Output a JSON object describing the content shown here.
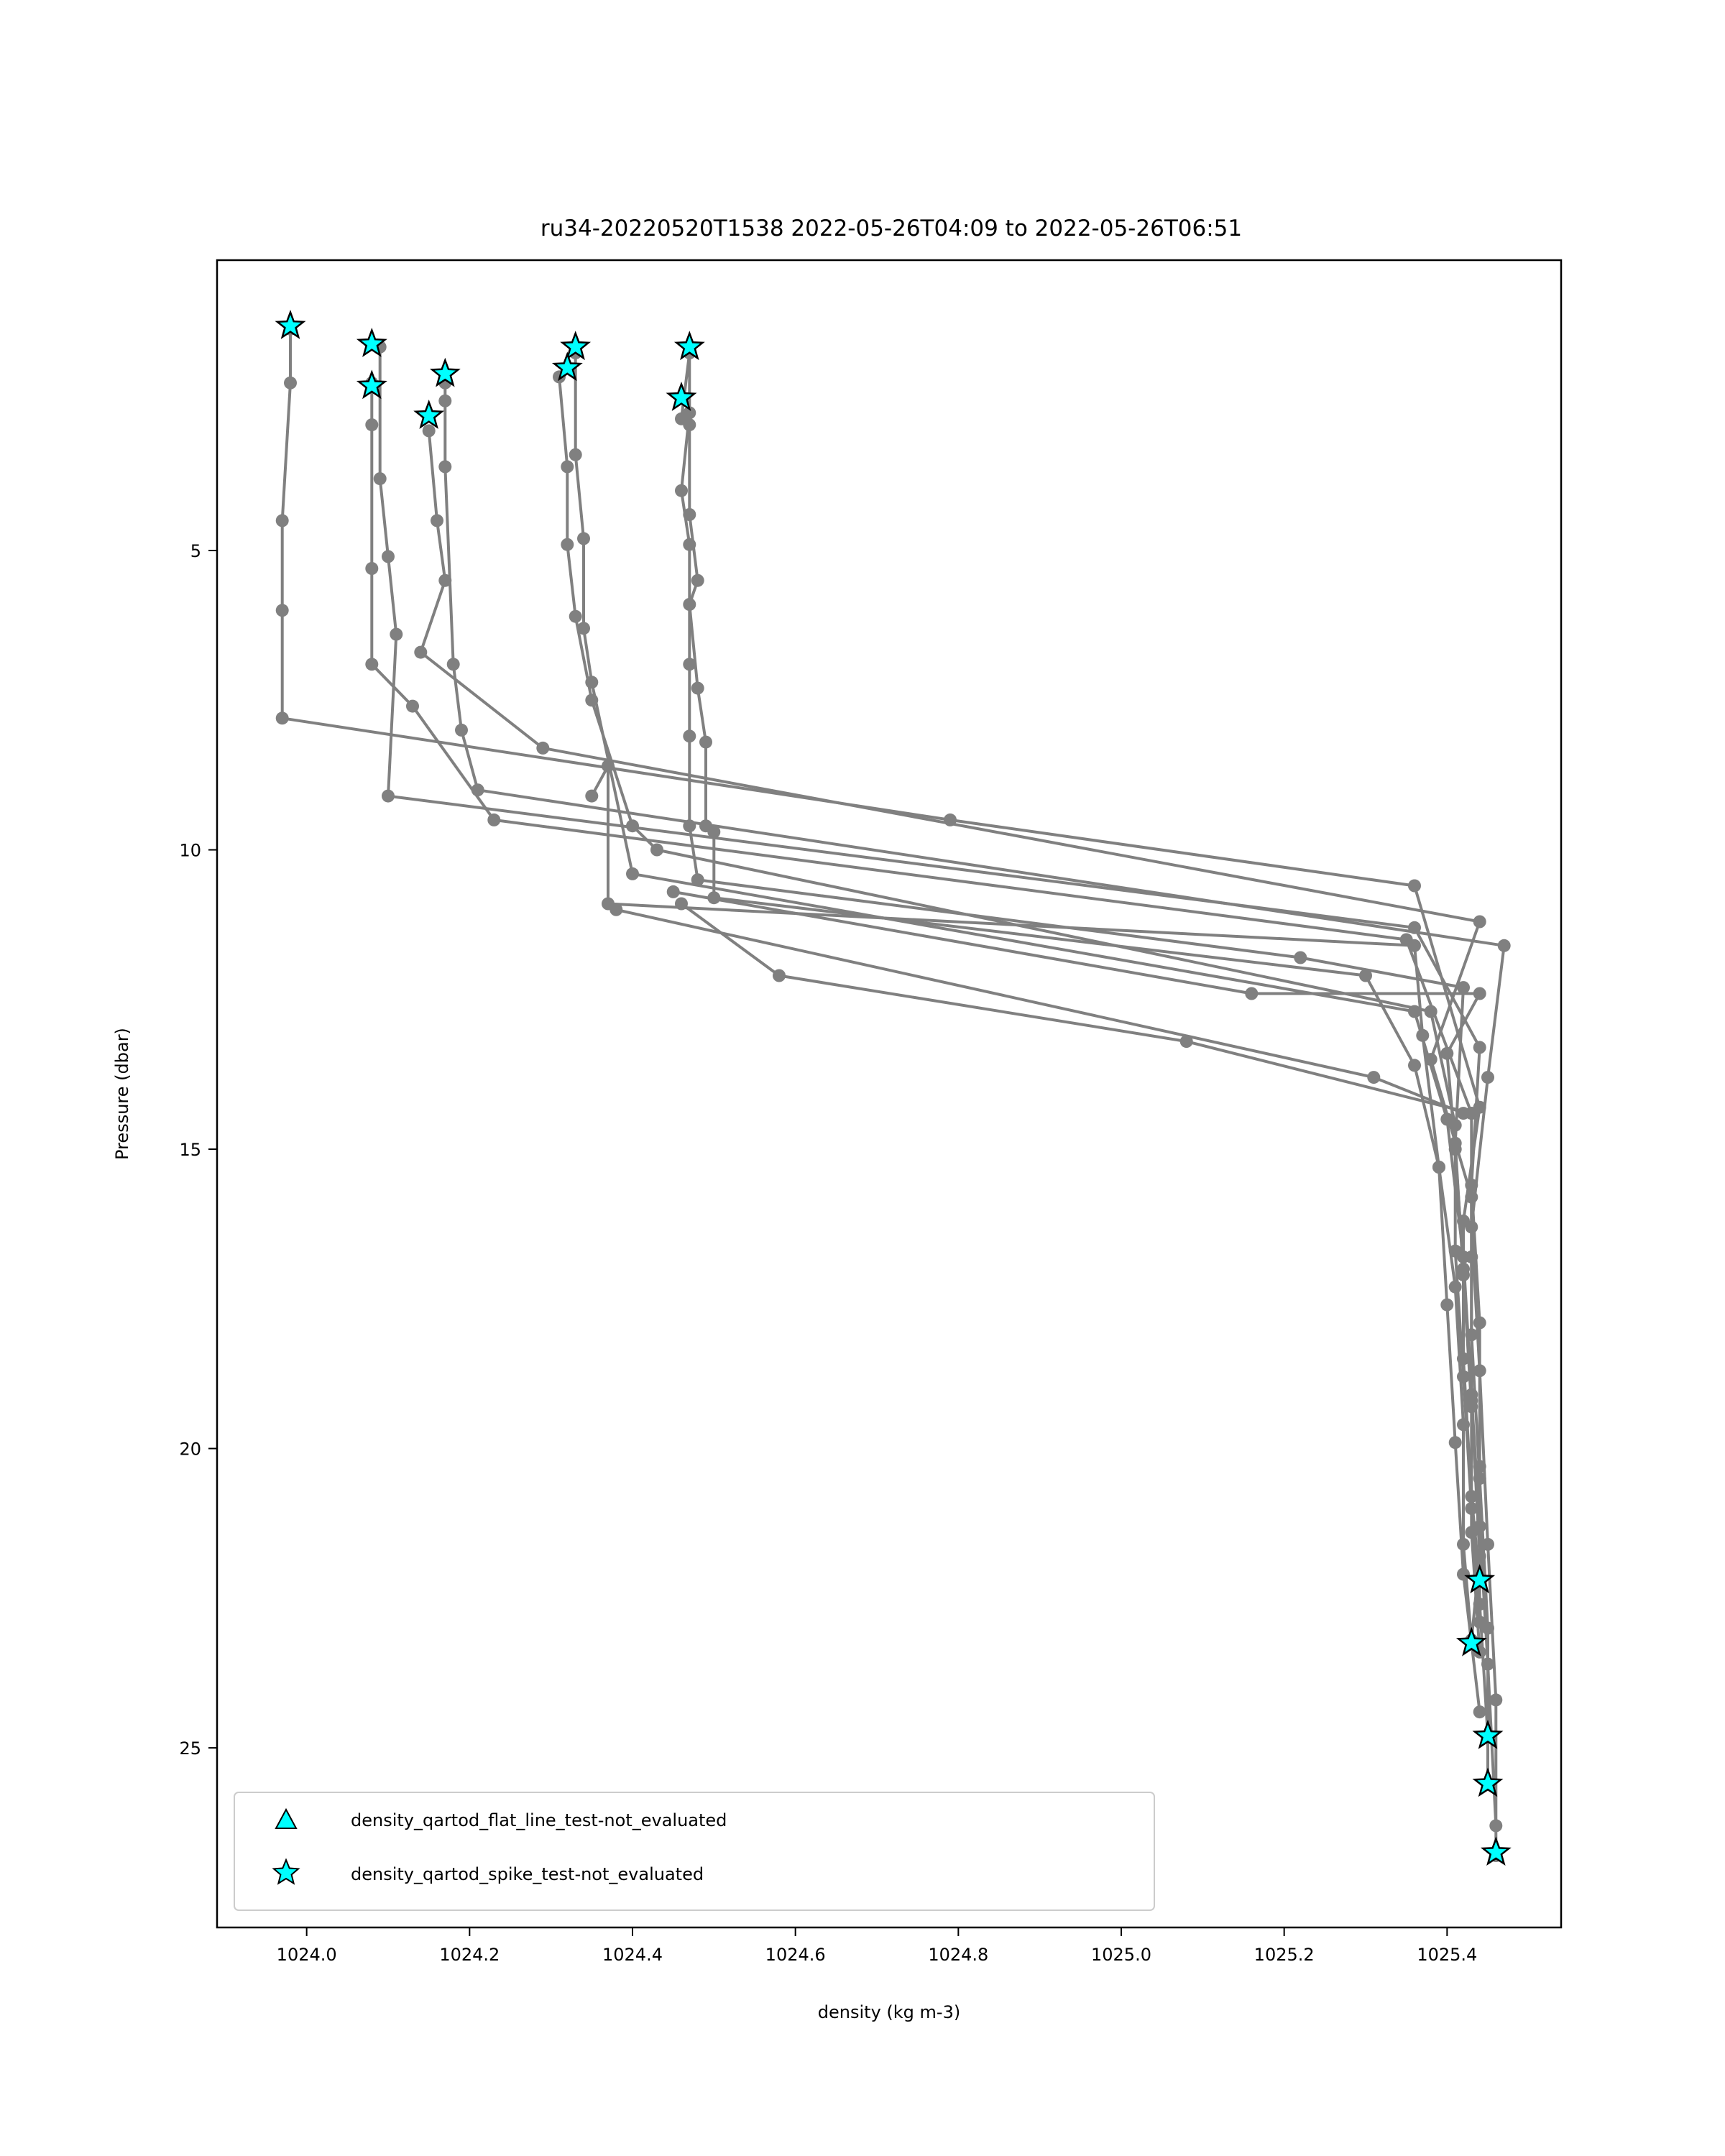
{
  "chart_data": {
    "type": "scatter",
    "title": "ru34-20220520T1538 2022-05-26T04:09 to 2022-05-26T06:51",
    "xlabel": "density (kg m-3)",
    "ylabel": "Pressure (dbar)",
    "xlim": [
      1023.89,
      1025.54
    ],
    "ylim": [
      28.0,
      0.15
    ],
    "y_inverted": true,
    "xticks": [
      1024.0,
      1024.2,
      1024.4,
      1024.6,
      1024.8,
      1025.0,
      1025.2,
      1025.4
    ],
    "xtick_labels": [
      "1024.0",
      "1024.2",
      "1024.4",
      "1024.6",
      "1024.8",
      "1025.0",
      "1025.2",
      "1025.4"
    ],
    "yticks": [
      5,
      10,
      15,
      20,
      25
    ],
    "ytick_labels": [
      "5",
      "10",
      "15",
      "20",
      "25"
    ],
    "grid": false,
    "legend_position": "lower-left",
    "line_color": "#808080",
    "marker_fill": "#00ffff",
    "marker_edge": "#000000",
    "profile_series": [
      {
        "points": [
          [
            1023.98,
            1.3
          ],
          [
            1023.98,
            2.2
          ],
          [
            1023.97,
            4.5
          ],
          [
            1023.97,
            6.0
          ],
          [
            1023.97,
            7.8
          ],
          [
            1024.79,
            9.5
          ],
          [
            1025.36,
            10.6
          ],
          [
            1025.44,
            14.3
          ],
          [
            1025.42,
            16.2
          ],
          [
            1025.42,
            18.5
          ],
          [
            1025.43,
            20.8
          ],
          [
            1025.44,
            22.2
          ]
        ]
      },
      {
        "points": [
          [
            1024.08,
            2.2
          ],
          [
            1024.08,
            2.9
          ],
          [
            1024.08,
            5.3
          ],
          [
            1024.08,
            6.9
          ],
          [
            1024.13,
            7.6
          ],
          [
            1024.23,
            9.5
          ],
          [
            1025.35,
            11.5
          ],
          [
            1025.43,
            14.4
          ],
          [
            1025.43,
            16.8
          ],
          [
            1025.43,
            19.2
          ],
          [
            1025.44,
            21.8
          ],
          [
            1025.43,
            23.2
          ]
        ]
      },
      {
        "points": [
          [
            1024.09,
            1.6
          ],
          [
            1024.09,
            3.8
          ],
          [
            1024.1,
            5.1
          ],
          [
            1024.11,
            6.4
          ],
          [
            1024.1,
            9.1
          ],
          [
            1025.36,
            11.3
          ],
          [
            1025.44,
            13.3
          ],
          [
            1025.43,
            15.6
          ],
          [
            1025.44,
            17.9
          ],
          [
            1025.44,
            20.3
          ],
          [
            1025.44,
            22.6
          ],
          [
            1025.45,
            24.8
          ]
        ]
      },
      {
        "points": [
          [
            1024.15,
            3.0
          ],
          [
            1024.16,
            4.5
          ],
          [
            1024.17,
            5.5
          ],
          [
            1024.14,
            6.7
          ],
          [
            1024.29,
            8.3
          ],
          [
            1025.44,
            11.2
          ],
          [
            1025.38,
            13.5
          ],
          [
            1025.43,
            15.8
          ],
          [
            1025.43,
            18.1
          ],
          [
            1025.44,
            20.5
          ],
          [
            1025.45,
            23.0
          ],
          [
            1025.45,
            25.6
          ]
        ]
      },
      {
        "points": [
          [
            1024.17,
            2.2
          ],
          [
            1024.17,
            2.5
          ],
          [
            1024.17,
            3.6
          ],
          [
            1024.18,
            6.9
          ],
          [
            1024.19,
            8.0
          ],
          [
            1024.21,
            9.0
          ],
          [
            1025.47,
            11.6
          ],
          [
            1025.45,
            13.8
          ],
          [
            1025.43,
            16.3
          ],
          [
            1025.44,
            18.7
          ],
          [
            1025.45,
            21.6
          ],
          [
            1025.46,
            24.2
          ],
          [
            1025.46,
            26.8
          ]
        ]
      },
      {
        "points": [
          [
            1024.31,
            2.1
          ],
          [
            1024.32,
            3.6
          ],
          [
            1024.32,
            4.9
          ],
          [
            1024.33,
            6.1
          ],
          [
            1024.35,
            7.5
          ],
          [
            1024.4,
            9.6
          ],
          [
            1024.43,
            10.0
          ],
          [
            1025.38,
            12.7
          ],
          [
            1025.41,
            14.6
          ],
          [
            1025.41,
            16.7
          ],
          [
            1025.42,
            18.8
          ],
          [
            1025.43,
            21.0
          ],
          [
            1025.44,
            22.9
          ]
        ]
      },
      {
        "points": [
          [
            1024.33,
            1.7
          ],
          [
            1024.33,
            3.4
          ],
          [
            1024.34,
            4.8
          ],
          [
            1024.34,
            6.3
          ],
          [
            1024.35,
            7.2
          ],
          [
            1024.4,
            10.4
          ],
          [
            1025.36,
            12.7
          ],
          [
            1025.4,
            14.5
          ],
          [
            1025.42,
            16.8
          ],
          [
            1025.43,
            19.1
          ],
          [
            1025.44,
            21.3
          ],
          [
            1025.45,
            23.6
          ],
          [
            1025.46,
            26.3
          ]
        ]
      },
      {
        "points": [
          [
            1024.35,
            9.1
          ],
          [
            1024.37,
            8.6
          ],
          [
            1024.37,
            10.9
          ],
          [
            1025.36,
            11.6
          ],
          [
            1025.37,
            13.1
          ],
          [
            1025.39,
            15.3
          ],
          [
            1025.41,
            17.3
          ],
          [
            1025.42,
            19.6
          ],
          [
            1025.42,
            21.6
          ],
          [
            1025.43,
            23.2
          ]
        ]
      },
      {
        "points": [
          [
            1024.46,
            2.8
          ],
          [
            1024.47,
            1.7
          ],
          [
            1024.47,
            2.7
          ],
          [
            1024.46,
            4.0
          ],
          [
            1024.47,
            4.9
          ],
          [
            1024.47,
            6.9
          ],
          [
            1024.47,
            8.1
          ],
          [
            1024.47,
            9.6
          ],
          [
            1024.48,
            10.5
          ],
          [
            1025.22,
            11.8
          ],
          [
            1025.42,
            12.3
          ],
          [
            1025.41,
            14.9
          ],
          [
            1025.42,
            17.1
          ],
          [
            1025.43,
            19.3
          ],
          [
            1025.43,
            21.4
          ],
          [
            1025.44,
            23.4
          ]
        ]
      },
      {
        "points": [
          [
            1024.47,
            2.9
          ],
          [
            1024.47,
            4.4
          ],
          [
            1024.48,
            5.5
          ],
          [
            1024.47,
            5.9
          ],
          [
            1024.48,
            7.3
          ],
          [
            1024.49,
            8.2
          ],
          [
            1024.49,
            9.6
          ],
          [
            1024.5,
            9.7
          ],
          [
            1024.5,
            10.8
          ],
          [
            1025.3,
            12.1
          ],
          [
            1025.36,
            13.6
          ],
          [
            1025.39,
            15.3
          ],
          [
            1025.4,
            17.6
          ],
          [
            1025.41,
            19.9
          ],
          [
            1025.42,
            22.1
          ],
          [
            1025.44,
            24.4
          ]
        ]
      },
      {
        "points": [
          [
            1024.46,
            10.9
          ],
          [
            1024.58,
            12.1
          ],
          [
            1025.08,
            13.2
          ],
          [
            1025.43,
            14.4
          ]
        ]
      },
      {
        "points": [
          [
            1024.45,
            10.7
          ],
          [
            1025.16,
            12.4
          ],
          [
            1025.44,
            12.4
          ],
          [
            1025.4,
            13.4
          ],
          [
            1025.41,
            15.0
          ],
          [
            1025.42,
            17.0
          ]
        ]
      },
      {
        "points": [
          [
            1024.38,
            11.0
          ],
          [
            1025.31,
            13.8
          ],
          [
            1025.42,
            14.4
          ]
        ]
      }
    ],
    "series": [
      {
        "name": "density_qartod_flat_line_test-not_evaluated",
        "marker": "triangle",
        "points": []
      },
      {
        "name": "density_qartod_spike_test-not_evaluated",
        "marker": "star",
        "points": [
          [
            1023.98,
            1.25
          ],
          [
            1024.08,
            1.55
          ],
          [
            1024.08,
            2.25
          ],
          [
            1024.17,
            2.05
          ],
          [
            1024.15,
            2.75
          ],
          [
            1024.33,
            1.6
          ],
          [
            1024.32,
            1.95
          ],
          [
            1024.47,
            1.6
          ],
          [
            1024.46,
            2.45
          ],
          [
            1025.44,
            22.2
          ],
          [
            1025.43,
            23.25
          ],
          [
            1025.45,
            24.8
          ],
          [
            1025.45,
            25.6
          ],
          [
            1025.46,
            26.75
          ]
        ]
      }
    ]
  }
}
